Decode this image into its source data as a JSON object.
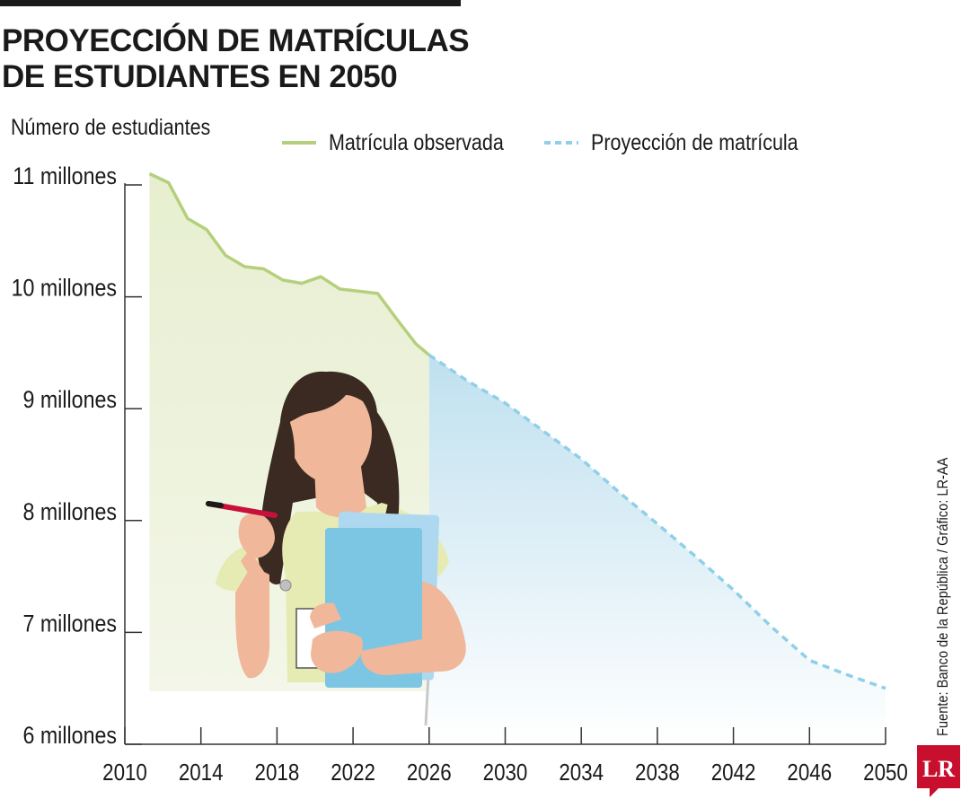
{
  "title": {
    "line1": "PROYECCIÓN DE MATRÍCULAS",
    "line2": "DE ESTUDIANTES EN 2050"
  },
  "source_text": "Fuente: Banco de la República / Gráfico: LR-AA",
  "logo_text": "LR",
  "colors": {
    "observed": "#b5d07c",
    "observed_fill": "#eef3de",
    "projection": "#8fd0e8",
    "projection_fill": "#cfe8f3",
    "logo": "#c8102e"
  },
  "illustration": "student-woman-holding-folders-and-pen",
  "chart_data": {
    "type": "area",
    "ylabel": "Número de estudiantes",
    "xlabel": "",
    "x_ticks": [
      2010,
      2014,
      2018,
      2022,
      2026,
      2030,
      2034,
      2038,
      2042,
      2046,
      2050
    ],
    "y_ticks": [
      6,
      7,
      8,
      9,
      10,
      11
    ],
    "y_tick_labels": [
      "6 millones",
      "7 millones",
      "8 millones",
      "9 millones",
      "10 millones",
      "11 millones"
    ],
    "xlim": [
      2010,
      2050
    ],
    "ylim": [
      6,
      11
    ],
    "y_unit": "millones",
    "grid": false,
    "legend_position": "top",
    "series": [
      {
        "name": "Matrícula observada",
        "style": "solid",
        "points": [
          [
            2011.3,
            11.1
          ],
          [
            2012.3,
            11.02
          ],
          [
            2013.3,
            10.7
          ],
          [
            2014.3,
            10.6
          ],
          [
            2015.3,
            10.37
          ],
          [
            2016.3,
            10.27
          ],
          [
            2017.3,
            10.25
          ],
          [
            2018.3,
            10.15
          ],
          [
            2019.3,
            10.12
          ],
          [
            2020.3,
            10.18
          ],
          [
            2021.3,
            10.07
          ],
          [
            2022.3,
            10.05
          ],
          [
            2023.3,
            10.03
          ],
          [
            2024.3,
            9.8
          ],
          [
            2025.3,
            9.58
          ],
          [
            2026.0,
            9.48
          ]
        ]
      },
      {
        "name": "Proyección de matrícula",
        "style": "dashed",
        "points": [
          [
            2026,
            9.48
          ],
          [
            2028,
            9.25
          ],
          [
            2030,
            9.05
          ],
          [
            2032,
            8.8
          ],
          [
            2034,
            8.55
          ],
          [
            2036,
            8.25
          ],
          [
            2038,
            7.97
          ],
          [
            2040,
            7.68
          ],
          [
            2042,
            7.38
          ],
          [
            2044,
            7.05
          ],
          [
            2046,
            6.75
          ],
          [
            2048,
            6.62
          ],
          [
            2050,
            6.5
          ]
        ]
      }
    ]
  }
}
